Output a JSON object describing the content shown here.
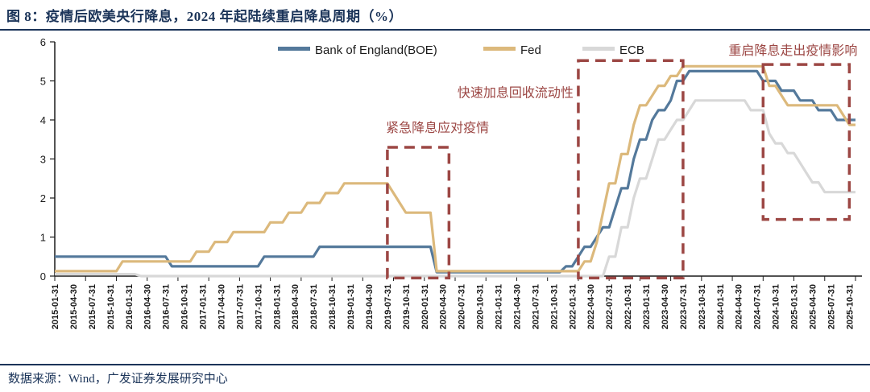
{
  "page": {
    "title": "图 8：疫情后欧美央行降息，2024 年起陆续重启降息周期（%）",
    "source": "数据来源：Wind，广发证券发展研究中心"
  },
  "chart_data": {
    "type": "line",
    "title": "疫情后欧美央行降息，2024 年起陆续重启降息周期（%）",
    "unit": "%",
    "x_start": "2015-01",
    "x_end": "2025-11",
    "ylim": [
      0,
      6
    ],
    "yticks": [
      0,
      1,
      2,
      3,
      4,
      5,
      6
    ],
    "grid": false,
    "legend_position": "top",
    "x_tick_labels": [
      "2015-01-31",
      "2015-04-30",
      "2015-07-31",
      "2015-10-31",
      "2016-01-31",
      "2016-04-30",
      "2016-07-31",
      "2016-10-31",
      "2017-01-31",
      "2017-04-30",
      "2017-07-31",
      "2017-10-31",
      "2018-01-31",
      "2018-04-30",
      "2018-07-31",
      "2018-10-31",
      "2019-01-31",
      "2019-04-30",
      "2019-07-31",
      "2019-10-31",
      "2020-01-31",
      "2020-04-30",
      "2020-07-31",
      "2020-10-31",
      "2021-01-31",
      "2021-04-30",
      "2021-07-31",
      "2021-10-31",
      "2022-01-31",
      "2022-04-30",
      "2022-07-31",
      "2022-10-31",
      "2023-01-31",
      "2023-04-30",
      "2023-07-31",
      "2023-10-31",
      "2024-01-31",
      "2024-04-30",
      "2024-07-31",
      "2024-10-31",
      "2025-01-31",
      "2025-04-30",
      "2025-07-31",
      "2025-10-31"
    ],
    "series": [
      {
        "name": "Bank of England(BOE)",
        "color": "#54799b",
        "rate_changes": [
          [
            "2015-01",
            0.5
          ],
          [
            "2016-08",
            0.25
          ],
          [
            "2017-11",
            0.5
          ],
          [
            "2018-08",
            0.75
          ],
          [
            "2020-03",
            0.1
          ],
          [
            "2021-12",
            0.25
          ],
          [
            "2022-02",
            0.5
          ],
          [
            "2022-03",
            0.75
          ],
          [
            "2022-05",
            1.0
          ],
          [
            "2022-06",
            1.25
          ],
          [
            "2022-08",
            1.75
          ],
          [
            "2022-09",
            2.25
          ],
          [
            "2022-11",
            3.0
          ],
          [
            "2022-12",
            3.5
          ],
          [
            "2023-02",
            4.0
          ],
          [
            "2023-03",
            4.25
          ],
          [
            "2023-05",
            4.5
          ],
          [
            "2023-06",
            5.0
          ],
          [
            "2023-08",
            5.25
          ],
          [
            "2024-08",
            5.0
          ],
          [
            "2024-11",
            4.75
          ],
          [
            "2025-02",
            4.5
          ],
          [
            "2025-05",
            4.25
          ],
          [
            "2025-08",
            4.0
          ]
        ]
      },
      {
        "name": "Fed",
        "color": "#dcb97c",
        "rate_changes": [
          [
            "2015-01",
            0.125
          ],
          [
            "2015-12",
            0.375
          ],
          [
            "2016-12",
            0.625
          ],
          [
            "2017-03",
            0.875
          ],
          [
            "2017-06",
            1.125
          ],
          [
            "2017-12",
            1.375
          ],
          [
            "2018-03",
            1.625
          ],
          [
            "2018-06",
            1.875
          ],
          [
            "2018-09",
            2.125
          ],
          [
            "2018-12",
            2.375
          ],
          [
            "2019-08",
            2.125
          ],
          [
            "2019-09",
            1.875
          ],
          [
            "2019-10",
            1.625
          ],
          [
            "2020-03",
            0.125
          ],
          [
            "2022-03",
            0.375
          ],
          [
            "2022-05",
            0.875
          ],
          [
            "2022-06",
            1.625
          ],
          [
            "2022-07",
            2.375
          ],
          [
            "2022-09",
            3.125
          ],
          [
            "2022-11",
            3.875
          ],
          [
            "2022-12",
            4.375
          ],
          [
            "2023-02",
            4.625
          ],
          [
            "2023-03",
            4.875
          ],
          [
            "2023-05",
            5.125
          ],
          [
            "2023-07",
            5.375
          ],
          [
            "2024-09",
            4.875
          ],
          [
            "2024-11",
            4.625
          ],
          [
            "2024-12",
            4.375
          ],
          [
            "2025-09",
            4.125
          ],
          [
            "2025-10",
            3.875
          ]
        ]
      },
      {
        "name": "ECB",
        "color": "#d8d8d8",
        "rate_changes": [
          [
            "2015-01",
            0.05
          ],
          [
            "2016-03",
            0.0
          ],
          [
            "2022-07",
            0.5
          ],
          [
            "2022-09",
            1.25
          ],
          [
            "2022-11",
            2.0
          ],
          [
            "2022-12",
            2.5
          ],
          [
            "2023-02",
            3.0
          ],
          [
            "2023-03",
            3.5
          ],
          [
            "2023-05",
            3.75
          ],
          [
            "2023-06",
            4.0
          ],
          [
            "2023-08",
            4.25
          ],
          [
            "2023-09",
            4.5
          ],
          [
            "2024-06",
            4.25
          ],
          [
            "2024-09",
            3.65
          ],
          [
            "2024-10",
            3.4
          ],
          [
            "2024-12",
            3.15
          ],
          [
            "2025-02",
            2.9
          ],
          [
            "2025-03",
            2.65
          ],
          [
            "2025-04",
            2.4
          ],
          [
            "2025-06",
            2.15
          ]
        ]
      }
    ],
    "annotation_color": "#9c4744",
    "annotations": [
      {
        "label": "紧急降息应对疫情",
        "label_placement": "above-center",
        "box": {
          "x_from": "2019-07",
          "x_to": "2020-05",
          "y_from": -0.05,
          "y_to": 3.3
        }
      },
      {
        "label": "快速加息回收流动性",
        "label_placement": "left-of-top",
        "box": {
          "x_from": "2022-02",
          "x_to": "2023-07",
          "y_from": -0.05,
          "y_to": 5.52
        }
      },
      {
        "label": "重启降息走出疫情影响",
        "label_placement": "above-right",
        "box": {
          "x_from": "2024-08",
          "x_to": "2025-10",
          "y_from": 1.45,
          "y_to": 5.42
        }
      }
    ]
  }
}
